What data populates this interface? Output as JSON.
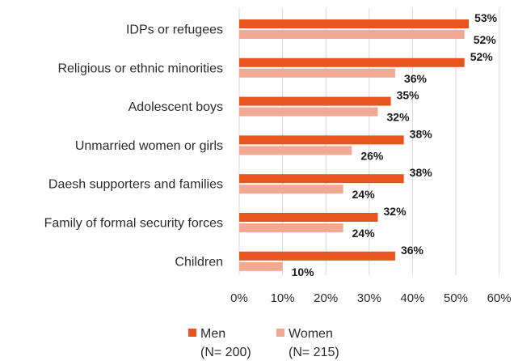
{
  "chart_data": {
    "type": "bar",
    "orientation": "horizontal",
    "categories": [
      "IDPs or refugees",
      "Religious or ethnic minorities",
      "Adolescent boys",
      "Unmarried women or girls",
      "Daesh supporters and families",
      "Family of formal security forces",
      "Children"
    ],
    "series": [
      {
        "name": "Men",
        "sample": "(N= 200)",
        "color": "#E8541E",
        "values": [
          53,
          52,
          35,
          38,
          38,
          32,
          36
        ]
      },
      {
        "name": "Women",
        "sample": "(N= 215)",
        "color": "#F2A994",
        "values": [
          52,
          36,
          32,
          26,
          24,
          24,
          10
        ]
      }
    ],
    "value_suffix": "%",
    "xlim": [
      0,
      60
    ],
    "xticks": [
      0,
      10,
      20,
      30,
      40,
      50,
      60
    ],
    "tick_labels": [
      "0%",
      "10%",
      "20%",
      "30%",
      "40%",
      "50%",
      "60%"
    ],
    "grid": "vertical",
    "legend_position": "bottom"
  }
}
